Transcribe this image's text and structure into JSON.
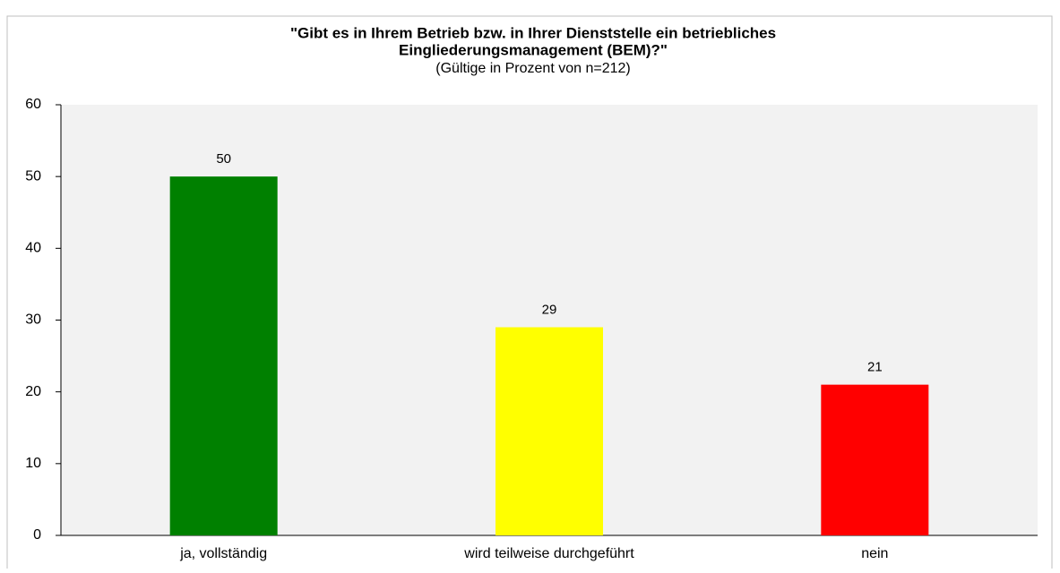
{
  "chart_data": {
    "type": "bar",
    "title": [
      "\"Gibt es in Ihrem Betrieb bzw. in Ihrer Dienststelle ein betriebliches",
      "Eingliederungsmanagement (BEM)?\""
    ],
    "subtitle": "(Gültige in Prozent von n=212)",
    "categories": [
      "ja, vollständig",
      "wird teilweise durchgeführt",
      "nein"
    ],
    "values": [
      50,
      29,
      21
    ],
    "colors": [
      "#008000",
      "#ffff00",
      "#ff0000"
    ],
    "ylim": [
      0,
      60
    ],
    "yticks": [
      0,
      10,
      20,
      30,
      40,
      50,
      60
    ],
    "grid": false
  }
}
